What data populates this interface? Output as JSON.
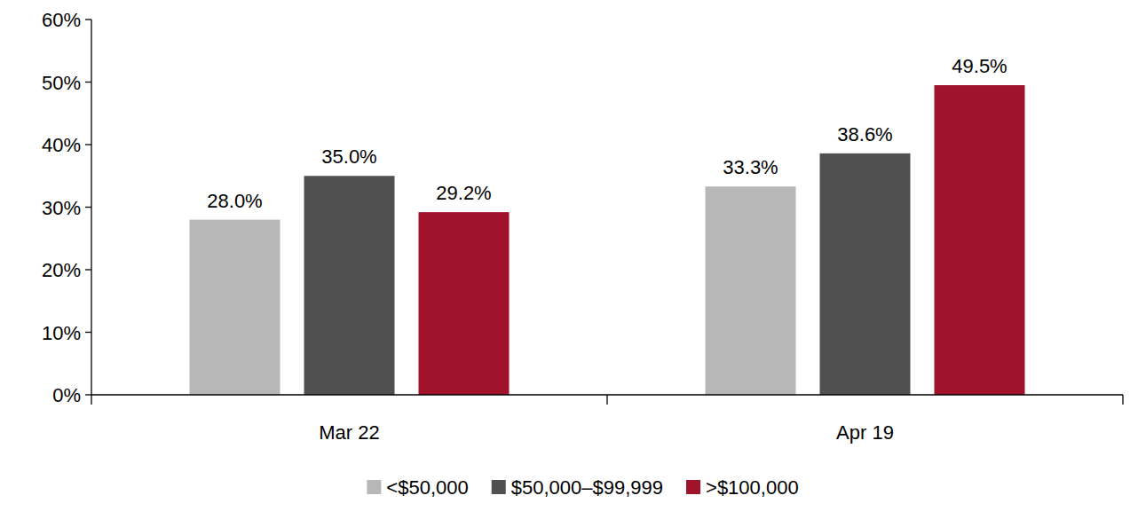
{
  "chart_data": {
    "type": "bar",
    "categories": [
      "Mar 22",
      "Apr 19"
    ],
    "series": [
      {
        "name": "<$50,000",
        "color": "#b7b7b7",
        "values": [
          28.0,
          33.3
        ],
        "value_labels": [
          "28.0%",
          "33.3%"
        ]
      },
      {
        "name": "$50,000–$99,999",
        "color": "#505050",
        "values": [
          35.0,
          38.6
        ],
        "value_labels": [
          "35.0%",
          "38.6%"
        ]
      },
      {
        "name": ">$100,000",
        "color": "#a0132a",
        "values": [
          29.2,
          49.5
        ],
        "value_labels": [
          "29.2%",
          "49.5%"
        ]
      }
    ],
    "ylim": [
      0,
      60
    ],
    "yticks": [
      {
        "value": 0,
        "label": "0%"
      },
      {
        "value": 10,
        "label": "10%"
      },
      {
        "value": 20,
        "label": "20%"
      },
      {
        "value": 30,
        "label": "30%"
      },
      {
        "value": 40,
        "label": "40%"
      },
      {
        "value": 50,
        "label": "50%"
      },
      {
        "value": 60,
        "label": "60%"
      }
    ],
    "grid": false,
    "legend": "bottom",
    "data_labels": true
  }
}
